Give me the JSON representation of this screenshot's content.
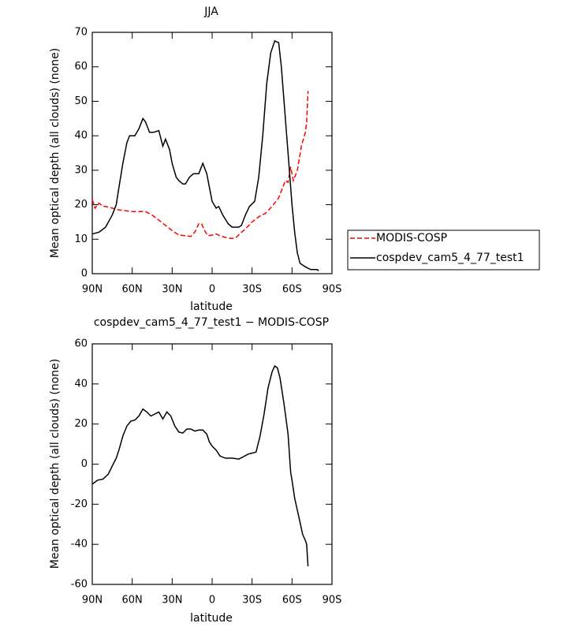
{
  "chart_data": [
    {
      "type": "line",
      "title": "JJA",
      "xlabel": "latitude",
      "ylabel": "Mean optical depth (all clouds) (none)",
      "xlim": [
        90,
        -90
      ],
      "xticks": [
        {
          "value": 90,
          "label": "90N"
        },
        {
          "value": 60,
          "label": "60N"
        },
        {
          "value": 30,
          "label": "30N"
        },
        0,
        {
          "value": -30,
          "label": "30S"
        },
        {
          "value": -60,
          "label": "60S"
        },
        {
          "value": -90,
          "label": "90S"
        }
      ],
      "ylim": [
        0,
        70
      ],
      "yticks": [
        0,
        10,
        20,
        30,
        40,
        50,
        60,
        70
      ],
      "legend": "outside-right",
      "series": [
        {
          "name": "MODIS-COSP",
          "color": "#ff0000",
          "dash": true,
          "x": [
            90,
            88,
            85,
            82,
            80,
            75,
            70,
            60,
            50,
            45,
            40,
            35,
            30,
            25,
            20,
            16,
            13,
            10,
            8,
            5,
            3,
            0,
            -3,
            -6,
            -10,
            -15,
            -18,
            -22,
            -25,
            -30,
            -35,
            -40,
            -45,
            -50,
            -52,
            -55,
            -57,
            -59,
            -61,
            -64,
            -67,
            -70,
            -71,
            -72
          ],
          "values": [
            21.5,
            19,
            20.5,
            19.5,
            19.5,
            19,
            18.5,
            18,
            18,
            17,
            15.5,
            14,
            12.5,
            11.2,
            11,
            10.8,
            12,
            14.5,
            14.5,
            12,
            11,
            11.2,
            11.5,
            11,
            10.5,
            10.2,
            10.5,
            12,
            13,
            15,
            16.5,
            17.5,
            19.5,
            22,
            24,
            27,
            26.5,
            31,
            27,
            30,
            37,
            41,
            44,
            53
          ]
        },
        {
          "name": "cospdev_cam5_4_77_test1",
          "color": "#000000",
          "dash": false,
          "x": [
            90,
            85,
            80,
            75,
            72,
            70,
            67,
            64,
            62,
            58,
            55,
            52,
            50,
            47,
            44,
            40,
            37,
            35,
            32,
            30,
            27,
            25,
            22,
            20,
            17,
            14,
            10,
            7,
            4,
            2,
            0,
            -3,
            -5,
            -8,
            -12,
            -15,
            -20,
            -22,
            -25,
            -28,
            -32,
            -35,
            -38,
            -41,
            -44,
            -47,
            -50,
            -52,
            -55,
            -58,
            -60,
            -62,
            -64,
            -66,
            -70,
            -74,
            -79,
            -80
          ],
          "values": [
            11.5,
            12,
            13.5,
            17,
            20,
            25,
            32,
            38,
            40,
            40,
            42,
            45,
            44,
            41,
            41,
            41.5,
            37,
            39,
            36,
            32,
            28,
            27,
            26,
            26,
            28,
            29,
            29,
            32,
            29,
            25,
            21,
            19,
            19.5,
            17,
            14.5,
            13.5,
            13.5,
            14,
            17,
            19.5,
            21,
            28,
            40,
            55,
            64,
            67.5,
            67,
            60,
            45,
            30,
            20,
            12,
            6,
            3,
            2,
            1.2,
            1.2,
            0.8
          ]
        }
      ]
    },
    {
      "type": "line",
      "title": "cospdev_cam5_4_77_test1 − MODIS-COSP",
      "xlabel": "latitude",
      "ylabel": "Mean optical depth (all clouds) (none)",
      "xlim": [
        90,
        -90
      ],
      "xticks": [
        {
          "value": 90,
          "label": "90N"
        },
        {
          "value": 60,
          "label": "60N"
        },
        {
          "value": 30,
          "label": "30N"
        },
        0,
        {
          "value": -30,
          "label": "30S"
        },
        {
          "value": -60,
          "label": "60S"
        },
        {
          "value": -90,
          "label": "90S"
        }
      ],
      "ylim": [
        -60,
        60
      ],
      "yticks": [
        -60,
        -40,
        -20,
        0,
        20,
        40,
        60
      ],
      "series": [
        {
          "color": "#000000",
          "dash": false,
          "x": [
            90,
            86,
            82,
            78,
            75,
            72,
            70,
            67,
            64,
            61,
            58,
            55,
            52,
            49,
            46,
            43,
            40,
            37,
            34,
            31,
            28,
            25,
            22,
            19,
            16,
            13,
            10,
            7,
            4,
            2,
            0,
            -3,
            -6,
            -10,
            -15,
            -20,
            -23,
            -27,
            -30,
            -33,
            -36,
            -39,
            -42,
            -45,
            -47,
            -49,
            -51,
            -54,
            -57,
            -59,
            -60,
            -62,
            -65,
            -68,
            -70,
            -71,
            -72
          ],
          "values": [
            -10,
            -8,
            -7.5,
            -5,
            -1,
            3,
            7,
            14,
            19,
            21.5,
            22,
            24,
            27.5,
            26,
            24,
            25,
            26,
            22.5,
            26,
            24,
            19,
            16,
            15.5,
            17.5,
            17.5,
            16.5,
            17,
            17,
            15,
            11,
            9,
            7,
            4,
            3,
            3,
            2.5,
            3.5,
            5,
            5.5,
            6,
            14,
            25,
            38,
            46,
            49,
            48,
            43,
            30,
            15,
            -4,
            -8,
            -17,
            -26,
            -35,
            -38,
            -40,
            -51
          ]
        }
      ]
    }
  ]
}
